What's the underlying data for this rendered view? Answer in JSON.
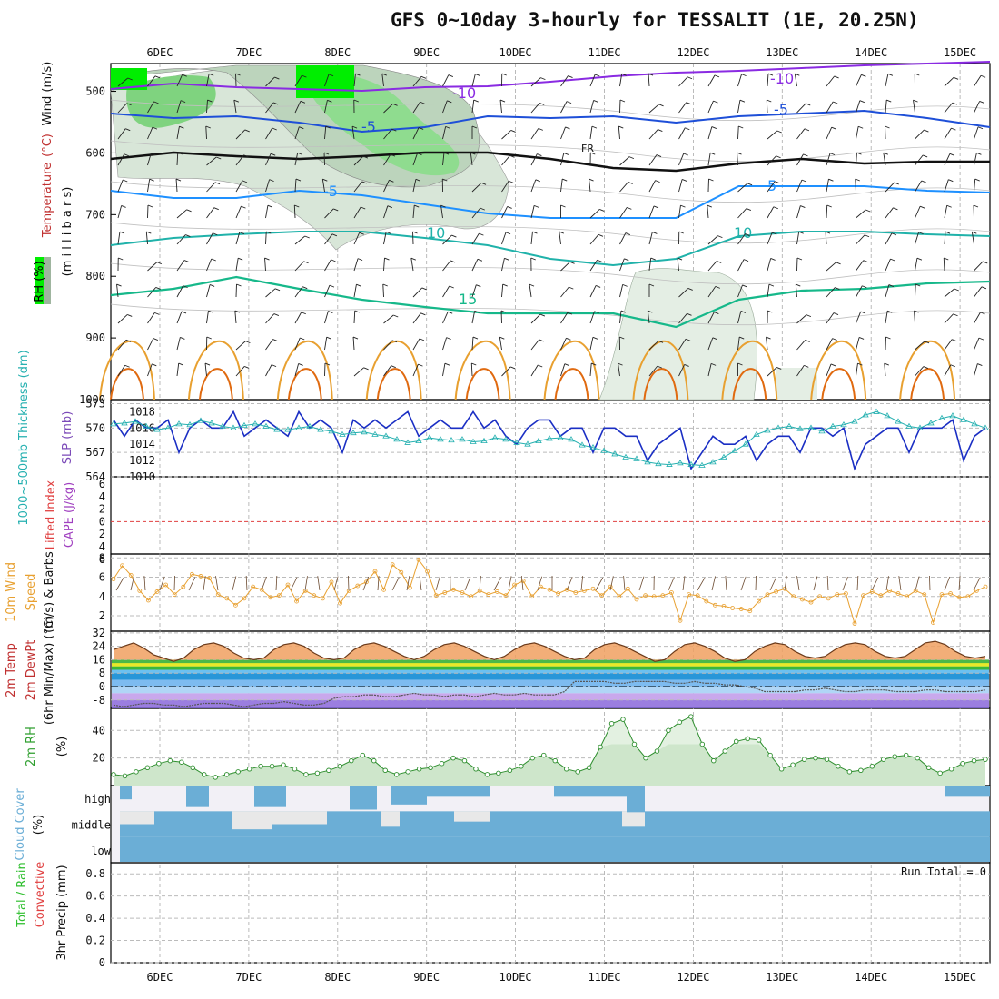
{
  "title": "GFS 0~10day 3-hourly for TESSALIT (1E, 20.25N)",
  "colors": {
    "rh_green": "#00ee00",
    "temp_purple": "#8a2be2",
    "temp_blue": "#1e4fd8",
    "temp_lightblue": "#1e90ff",
    "temp_cyan": "#20b2aa",
    "temp_teal": "#16b88a",
    "orange": "#e8a030",
    "slp_blue": "#1b2fc4",
    "thick_cyan": "#25b0b0",
    "lifted_red": "#e04040",
    "rh2m_green": "#2f8f2f",
    "cloud_blue": "#6baed6"
  },
  "date_labels": [
    "6DEC",
    "7DEC",
    "8DEC",
    "9DEC",
    "10DEC",
    "11DEC",
    "12DEC",
    "13DEC",
    "14DEC",
    "15DEC"
  ],
  "panels": {
    "upper": {
      "ylabel_parts": [
        {
          "text": "Wind (m/s)",
          "color": "#111111"
        },
        {
          "text": "(°C)",
          "color": "#c03030"
        },
        {
          "text": "Temperature",
          "color": "#c03030"
        }
      ],
      "rh_label": "RH (%)",
      "ylabel2": "(m i l l i b a r s)",
      "yticks": [
        "500",
        "600",
        "700",
        "800",
        "900",
        "1000"
      ],
      "contour_labels": [
        "-10",
        "-10",
        "-5",
        "-5",
        "-5",
        "FR",
        "5",
        "10",
        "10",
        "15"
      ]
    },
    "thickness": {
      "left_label": "1000~500mb Thickness (dm)",
      "right_label": "SLP (mb)",
      "left_ticks": [
        "573",
        "570",
        "567",
        "564"
      ],
      "right_ticks": [
        "1018",
        "1016",
        "1014",
        "1012",
        "1010"
      ]
    },
    "cape": {
      "left_label": "Lifted Index",
      "right_label": "CAPE (J/kg)",
      "ticks": [
        "6",
        "4",
        "2",
        "0",
        "2",
        "4",
        "6"
      ]
    },
    "wind10m": {
      "label1": "10m Wind",
      "label2": "Speed",
      "label3": "(m/s) & Barbs",
      "ticks": [
        "8",
        "6",
        "4",
        "2"
      ]
    },
    "temp2m": {
      "label1": "2m Temp",
      "label2": "2m DewPt",
      "label3": "(6hr Min/Max) (°C)",
      "ticks": [
        "32",
        "24",
        "16",
        "8",
        "0",
        "-8"
      ]
    },
    "rh2m": {
      "label": "2m RH",
      "unit": "(%)",
      "ticks": [
        "40",
        "20"
      ]
    },
    "cloud": {
      "label": "Cloud Cover",
      "unit": "(%)",
      "levels": [
        "high",
        "middle",
        "low"
      ]
    },
    "precip": {
      "label1": "Total / Rain",
      "label2": "Convective",
      "label3": "3hr Precip (mm)",
      "ticks": [
        "0.8",
        "0.6",
        "0.4",
        "0.2",
        "0"
      ],
      "run_total": "Run Total = 0"
    }
  },
  "chart_data": [
    {
      "type": "line",
      "title": "1000~500mb Thickness (dm) & SLP (mb)",
      "series": [
        {
          "name": "SLP (mb)",
          "values": [
            1017,
            1015,
            1017,
            1016,
            1016,
            1017,
            1013,
            1016,
            1017,
            1016,
            1016,
            1018,
            1015,
            1016,
            1017,
            1016,
            1015,
            1018,
            1016,
            1017,
            1016,
            1013,
            1017,
            1016,
            1017,
            1016,
            1017,
            1018,
            1015,
            1016,
            1017,
            1016,
            1016,
            1018,
            1016,
            1017,
            1015,
            1014,
            1016,
            1017,
            1017,
            1015,
            1016,
            1016,
            1013,
            1016,
            1016,
            1015,
            1015,
            1012,
            1014,
            1015,
            1016,
            1011,
            1013,
            1015,
            1014,
            1014,
            1015,
            1012,
            1014,
            1015,
            1015,
            1013,
            1016,
            1016,
            1015,
            1016,
            1011,
            1014,
            1015,
            1016,
            1016,
            1013,
            1016,
            1016,
            1016,
            1017,
            1012,
            1015,
            1016
          ]
        },
        {
          "name": "1000~500mb Thickness (dm)",
          "values": [
            570.5,
            570.6,
            570.8,
            570.2,
            569.8,
            570.0,
            570.5,
            570.4,
            570.9,
            570.6,
            570.2,
            570.0,
            570.3,
            570.5,
            570.2,
            569.8,
            569.8,
            570.0,
            570.2,
            569.8,
            569.6,
            569.2,
            569.4,
            569.5,
            569.2,
            569.0,
            568.6,
            568.2,
            568.4,
            568.8,
            568.6,
            568.5,
            568.6,
            568.3,
            568.4,
            568.8,
            568.6,
            568.2,
            568.0,
            568.4,
            568.7,
            568.8,
            568.6,
            567.9,
            567.6,
            567.2,
            566.8,
            566.4,
            566.2,
            565.8,
            565.6,
            565.5,
            565.7,
            565.5,
            565.4,
            565.8,
            566.4,
            567.2,
            568.0,
            569.2,
            569.7,
            570.0,
            570.2,
            569.9,
            570.0,
            569.6,
            570.2,
            570.4,
            570.8,
            571.6,
            572.0,
            571.5,
            570.8,
            570.2,
            570.0,
            570.6,
            571.2,
            571.5,
            571.0,
            570.5,
            570.0
          ]
        }
      ]
    },
    {
      "type": "line",
      "title": "10m Wind Speed (m/s)",
      "series": [
        {
          "name": "Speed",
          "values": [
            5.8,
            7.2,
            6.2,
            4.6,
            3.6,
            4.5,
            5.2,
            4.2,
            5.0,
            6.3,
            6.1,
            5.9,
            4.2,
            3.8,
            3.1,
            3.8,
            5.0,
            4.7,
            3.9,
            4.1,
            5.2,
            3.5,
            4.6,
            4.1,
            3.8,
            5.5,
            3.3,
            4.6,
            5.1,
            5.5,
            6.6,
            4.7,
            7.3,
            6.5,
            4.9,
            7.8,
            6.6,
            4.1,
            4.4,
            4.7,
            4.4,
            4.0,
            4.6,
            4.2,
            4.5,
            4.1,
            5.2,
            5.6,
            4.0,
            5.0,
            4.7,
            4.3,
            4.7,
            4.4,
            4.6,
            4.8,
            4.1,
            5.0,
            4.0,
            4.8,
            3.7,
            4.1,
            4.0,
            4.1,
            4.4,
            1.5,
            4.2,
            4.1,
            3.5,
            3.1,
            3.0,
            2.8,
            2.7,
            2.5,
            3.5,
            4.2,
            4.5,
            4.8,
            4.0,
            3.7,
            3.4,
            4.0,
            3.8,
            4.2,
            4.3,
            1.2,
            4.1,
            4.5,
            4.1,
            4.6,
            4.3,
            4.0,
            4.6,
            4.2,
            1.3,
            4.2,
            4.3,
            3.9,
            4.0,
            4.6,
            5.0
          ]
        }
      ]
    },
    {
      "type": "area",
      "title": "2m Temp / 2m DewPt (°C)",
      "series": [
        {
          "name": "2m Temp",
          "values": [
            22,
            24,
            26,
            23,
            19,
            17,
            15,
            17,
            22,
            25,
            26,
            24,
            20,
            17,
            16,
            17,
            22,
            25,
            26,
            24,
            20,
            17,
            16,
            17,
            22,
            25,
            26,
            24,
            21,
            18,
            16,
            18,
            22,
            25,
            26,
            24,
            21,
            18,
            16,
            18,
            22,
            25,
            26,
            24,
            21,
            18,
            16,
            17,
            22,
            25,
            26,
            24,
            21,
            18,
            15,
            16,
            21,
            25,
            26,
            24,
            21,
            17,
            15,
            16,
            21,
            24,
            26,
            25,
            21,
            18,
            17,
            18,
            22,
            25,
            26,
            25,
            21,
            18,
            17,
            18,
            22,
            26,
            27,
            25,
            21,
            18,
            17,
            18
          ]
        },
        {
          "name": "2m DewPt",
          "values": [
            -11,
            -12,
            -11,
            -10,
            -10,
            -11,
            -11,
            -12,
            -11,
            -10,
            -10,
            -10,
            -11,
            -12,
            -11,
            -10,
            -10,
            -9,
            -10,
            -11,
            -11,
            -10,
            -7,
            -6,
            -6,
            -5,
            -5,
            -6,
            -6,
            -5,
            -4,
            -5,
            -5,
            -6,
            -5,
            -5,
            -6,
            -5,
            -4,
            -5,
            -5,
            -4,
            -5,
            -5,
            -5,
            -3,
            3,
            3,
            3,
            3,
            2,
            2,
            3,
            3,
            3,
            3,
            2,
            2,
            3,
            2,
            2,
            1,
            1,
            0,
            -1,
            -3,
            -3,
            -3,
            -3,
            -2,
            -2,
            -1,
            -2,
            -3,
            -3,
            -2,
            -2,
            -2,
            -3,
            -3,
            -3,
            -2,
            -2,
            -3,
            -3,
            -3,
            -3,
            -2
          ]
        }
      ]
    },
    {
      "type": "area",
      "title": "2m RH (%)",
      "series": [
        {
          "name": "2m RH",
          "values": [
            8,
            7,
            10,
            13,
            16,
            18,
            17,
            13,
            8,
            6,
            8,
            10,
            12,
            14,
            14,
            15,
            12,
            8,
            9,
            11,
            14,
            18,
            22,
            18,
            11,
            8,
            10,
            12,
            13,
            16,
            20,
            18,
            12,
            8,
            9,
            11,
            14,
            20,
            22,
            18,
            12,
            10,
            13,
            28,
            45,
            48,
            30,
            20,
            25,
            40,
            46,
            50,
            30,
            18,
            25,
            32,
            34,
            33,
            22,
            12,
            15,
            19,
            20,
            19,
            14,
            10,
            11,
            14,
            19,
            21,
            22,
            20,
            13,
            9,
            12,
            16,
            18,
            19
          ]
        }
      ]
    },
    {
      "type": "bar",
      "title": "3hr Precip (mm)",
      "values": [],
      "ylim": [
        0,
        0.9
      ]
    }
  ]
}
